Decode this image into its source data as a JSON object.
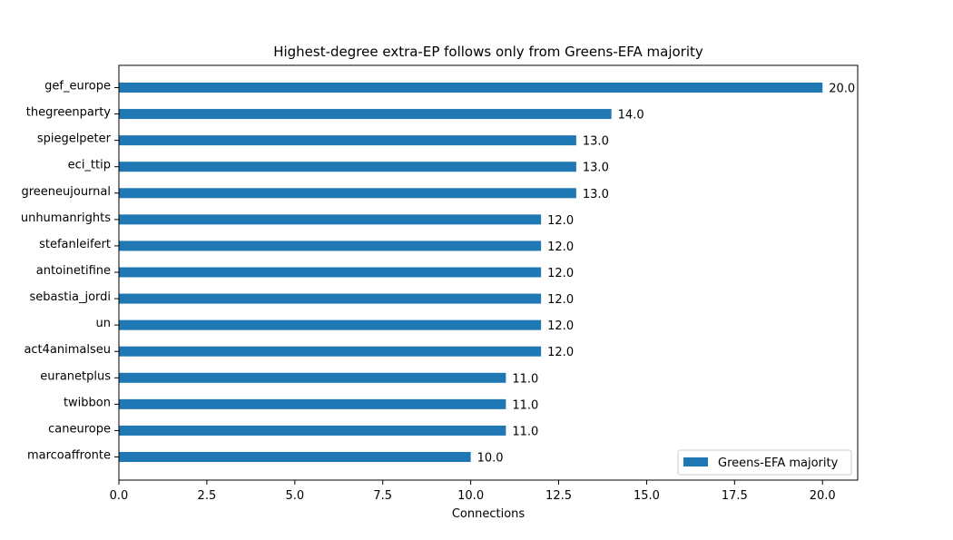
{
  "chart_data": {
    "type": "bar",
    "orientation": "horizontal",
    "title": "Highest-degree extra-EP follows only from Greens-EFA majority",
    "xlabel": "Connections",
    "ylabel": "",
    "xlim": [
      0,
      21
    ],
    "xticks": [
      "0.0",
      "2.5",
      "5.0",
      "7.5",
      "10.0",
      "12.5",
      "15.0",
      "17.5",
      "20.0"
    ],
    "categories": [
      "gef_europe",
      "thegreenparty",
      "spiegelpeter",
      "eci_ttip",
      "greeneujournal",
      "unhumanrights",
      "stefanleifert",
      "antoinetifine",
      "sebastia_jordi",
      "un",
      "act4animalseu",
      "euranetplus",
      "twibbon",
      "caneurope",
      "marcoaffronte"
    ],
    "series": [
      {
        "name": "Greens-EFA majority",
        "color": "#1f77b4",
        "values": [
          20.0,
          14.0,
          13.0,
          13.0,
          13.0,
          12.0,
          12.0,
          12.0,
          12.0,
          12.0,
          12.0,
          11.0,
          11.0,
          11.0,
          10.0
        ]
      }
    ],
    "value_labels": [
      "20.0",
      "14.0",
      "13.0",
      "13.0",
      "13.0",
      "12.0",
      "12.0",
      "12.0",
      "12.0",
      "12.0",
      "12.0",
      "11.0",
      "11.0",
      "11.0",
      "10.0"
    ],
    "legend_position": "lower-right",
    "grid": false
  }
}
